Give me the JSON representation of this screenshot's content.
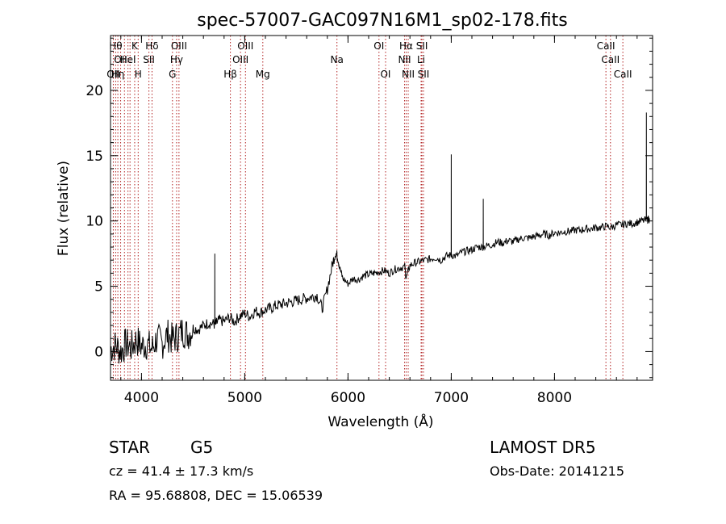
{
  "chart_data": {
    "type": "line",
    "title": "spec-57007-GAC097N16M1_sp02-178.fits",
    "xlabel": "Wavelength (Å)",
    "ylabel": "Flux (relative)",
    "xlim": [
      3700,
      8950
    ],
    "ylim": [
      -2.2,
      24.2
    ],
    "x_ticks": [
      4000,
      5000,
      6000,
      7000,
      8000
    ],
    "y_ticks": [
      0,
      5,
      10,
      15,
      20
    ],
    "grid": false,
    "line_color": "#000000",
    "marker_color": "#b22222",
    "series": [
      {
        "x": [
          3700,
          3750,
          3800,
          3850,
          3900,
          3950,
          4000,
          4050,
          4100,
          4150,
          4200,
          4250,
          4300,
          4350,
          4400,
          4450,
          4500,
          4550,
          4600,
          4650,
          4700,
          4720,
          4750,
          4800,
          4850,
          4900,
          4950,
          5000,
          5050,
          5100,
          5150,
          5200,
          5250,
          5300,
          5350,
          5400,
          5450,
          5500,
          5550,
          5600,
          5650,
          5700,
          5750,
          5800,
          5850,
          5880,
          5900,
          5920,
          5950,
          6000,
          6050,
          6100,
          6150,
          6200,
          6250,
          6300,
          6350,
          6400,
          6450,
          6500,
          6550,
          6563,
          6600,
          6650,
          6700,
          6750,
          6800,
          6850,
          6900,
          6950,
          7000,
          7050,
          7100,
          7150,
          7200,
          7250,
          7300,
          7350,
          7400,
          7450,
          7500,
          7550,
          7600,
          7650,
          7700,
          7750,
          7800,
          7850,
          7900,
          7950,
          8000,
          8050,
          8100,
          8150,
          8200,
          8250,
          8300,
          8350,
          8400,
          8450,
          8500,
          8550,
          8600,
          8650,
          8700,
          8750,
          8800,
          8850,
          8900,
          8920
        ],
        "y": [
          0.2,
          0.5,
          0.0,
          0.6,
          0.3,
          0.9,
          0.4,
          0.6,
          0.2,
          1.0,
          0.6,
          1.3,
          0.9,
          1.2,
          1.6,
          1.3,
          1.8,
          1.7,
          2.0,
          2.2,
          2.1,
          2.1,
          2.4,
          2.3,
          2.6,
          2.3,
          2.7,
          2.9,
          2.7,
          3.1,
          3.0,
          3.2,
          3.3,
          3.5,
          3.6,
          3.7,
          3.8,
          3.9,
          4.0,
          4.1,
          4.2,
          4.3,
          3.3,
          4.8,
          6.7,
          7.6,
          7.2,
          6.4,
          5.6,
          5.2,
          5.6,
          5.5,
          5.8,
          5.9,
          6.0,
          6.1,
          6.2,
          6.0,
          6.3,
          6.4,
          6.5,
          5.6,
          6.6,
          6.8,
          6.9,
          7.0,
          7.1,
          7.2,
          7.0,
          7.3,
          7.4,
          7.3,
          7.6,
          7.7,
          7.8,
          8.0,
          8.0,
          8.1,
          8.2,
          8.4,
          8.3,
          8.5,
          8.4,
          8.6,
          8.7,
          8.7,
          8.8,
          8.9,
          9.0,
          8.9,
          9.1,
          9.1,
          9.2,
          9.2,
          9.3,
          9.3,
          9.4,
          9.4,
          9.5,
          9.5,
          9.6,
          9.5,
          9.7,
          9.7,
          9.8,
          9.8,
          9.9,
          10.0,
          10.1,
          10.2
        ]
      }
    ],
    "emission_spikes": [
      {
        "x": 4710,
        "y": 7.5
      },
      {
        "x": 7000,
        "y": 15.1
      },
      {
        "x": 7310,
        "y": 11.7
      },
      {
        "x": 8890,
        "y": 18.3
      }
    ],
    "spectral_lines": [
      {
        "x": 3727,
        "label": "OII",
        "row": 2
      },
      {
        "x": 3750,
        "label": "H&#952;",
        "row": 0
      },
      {
        "x": 3771,
        "label": "H&#951;",
        "row": 2
      },
      {
        "x": 3798,
        "label": "OII",
        "row": 1
      },
      {
        "x": 3835,
        "label": "",
        "row": 1
      },
      {
        "x": 3869,
        "label": "HeI",
        "row": 1
      },
      {
        "x": 3889,
        "label": "",
        "row": 1
      },
      {
        "x": 3934,
        "label": "K",
        "row": 0
      },
      {
        "x": 3968,
        "label": "H",
        "row": 2
      },
      {
        "x": 4072,
        "label": "SII",
        "row": 1
      },
      {
        "x": 4102,
        "label": "H&#948;",
        "row": 0
      },
      {
        "x": 4300,
        "label": "G",
        "row": 2
      },
      {
        "x": 4340,
        "label": "H&#947;",
        "row": 1
      },
      {
        "x": 4363,
        "label": "OIII",
        "row": 0
      },
      {
        "x": 4861,
        "label": "H&#946;",
        "row": 2
      },
      {
        "x": 4959,
        "label": "OIII",
        "row": 1
      },
      {
        "x": 5007,
        "label": "OIII",
        "row": 0
      },
      {
        "x": 5175,
        "label": "Mg",
        "row": 2
      },
      {
        "x": 5893,
        "label": "Na",
        "row": 1
      },
      {
        "x": 6300,
        "label": "OI",
        "row": 0
      },
      {
        "x": 6364,
        "label": "OI",
        "row": 2
      },
      {
        "x": 6548,
        "label": "NII",
        "row": 1
      },
      {
        "x": 6563,
        "label": "H&#945;",
        "row": 0
      },
      {
        "x": 6583,
        "label": "NII",
        "row": 2
      },
      {
        "x": 6708,
        "label": "Li",
        "row": 1
      },
      {
        "x": 6716,
        "label": "SII",
        "row": 0
      },
      {
        "x": 6731,
        "label": "SII",
        "row": 2
      },
      {
        "x": 8498,
        "label": "CaII",
        "row": 0
      },
      {
        "x": 8542,
        "label": "CaII",
        "row": 1
      },
      {
        "x": 8662,
        "label": "CaII",
        "row": 2
      }
    ]
  },
  "info": {
    "object_class": "STAR",
    "subclass": "G5",
    "survey": "LAMOST DR5",
    "cz": "cz = 41.4 ± 17.3 km/s",
    "obs_date": "Obs-Date: 20141215",
    "coords": "RA =  95.68808, DEC =  15.06539"
  }
}
